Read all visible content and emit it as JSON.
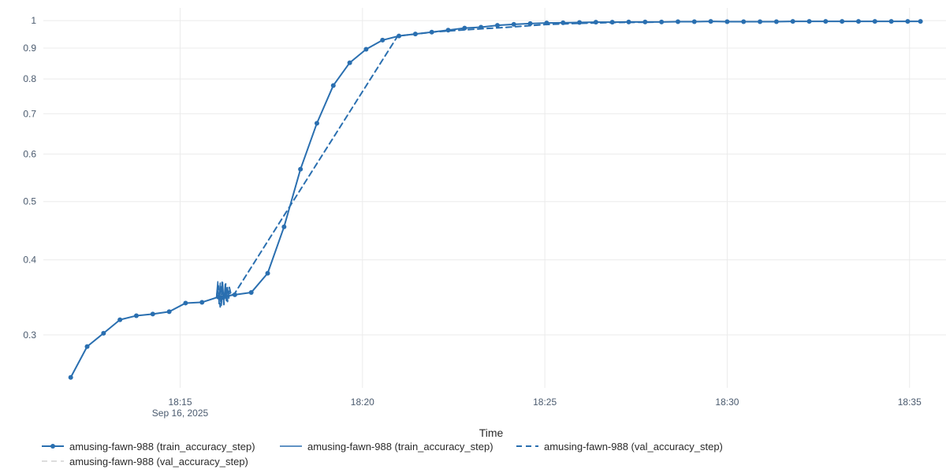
{
  "chart_data": {
    "type": "line",
    "xlabel": "Time",
    "x_scale": "time",
    "y_scale": "log",
    "grid": true,
    "legend_position": "bottom-left",
    "xlim": [
      "18:11:15",
      "18:36:00"
    ],
    "ylim": [
      0.245,
      1.05
    ],
    "x_ticks": [
      "18:15",
      "18:20",
      "18:25",
      "18:30",
      "18:35"
    ],
    "x_tick_sublabel": "Sep 16, 2025",
    "y_ticks": [
      0.3,
      0.4,
      0.5,
      0.6,
      0.7,
      0.8,
      0.9,
      1
    ],
    "colors": {
      "train_accuracy_step": "#2a6fb0",
      "train_accuracy_step_faint": "#cfe2f3",
      "val_accuracy_step": "#2a6fb0",
      "val_accuracy_step_faint": "#dddddd",
      "grid": "#ebebeb"
    },
    "series": [
      {
        "name": "amusing-fawn-988 (train_accuracy_step)",
        "style": "solid-markers",
        "points": [
          [
            "18:12:00",
            0.255
          ],
          [
            "18:12:27",
            0.287
          ],
          [
            "18:12:54",
            0.302
          ],
          [
            "18:13:21",
            0.318
          ],
          [
            "18:13:48",
            0.323
          ],
          [
            "18:14:15",
            0.325
          ],
          [
            "18:14:42",
            0.328
          ],
          [
            "18:15:09",
            0.339
          ],
          [
            "18:15:36",
            0.34
          ],
          [
            "18:16:03",
            0.347
          ],
          [
            "18:16:10",
            0.346
          ],
          [
            "18:16:15",
            0.348
          ],
          [
            "18:16:30",
            0.35
          ],
          [
            "18:16:57",
            0.353
          ],
          [
            "18:17:24",
            0.38
          ],
          [
            "18:17:51",
            0.454
          ],
          [
            "18:18:18",
            0.566
          ],
          [
            "18:18:45",
            0.675
          ],
          [
            "18:19:12",
            0.78
          ],
          [
            "18:19:39",
            0.851
          ],
          [
            "18:20:06",
            0.896
          ],
          [
            "18:20:33",
            0.928
          ],
          [
            "18:21:00",
            0.943
          ],
          [
            "18:21:27",
            0.95
          ],
          [
            "18:21:54",
            0.957
          ],
          [
            "18:22:21",
            0.964
          ],
          [
            "18:22:48",
            0.972
          ],
          [
            "18:23:15",
            0.975
          ],
          [
            "18:23:42",
            0.982
          ],
          [
            "18:24:09",
            0.986
          ],
          [
            "18:24:36",
            0.989
          ],
          [
            "18:25:03",
            0.991
          ],
          [
            "18:25:30",
            0.992
          ],
          [
            "18:25:57",
            0.993
          ],
          [
            "18:26:24",
            0.994
          ],
          [
            "18:26:51",
            0.994
          ],
          [
            "18:27:18",
            0.995
          ],
          [
            "18:27:45",
            0.995
          ],
          [
            "18:28:12",
            0.995
          ],
          [
            "18:28:39",
            0.996
          ],
          [
            "18:29:06",
            0.996
          ],
          [
            "18:29:33",
            0.997
          ],
          [
            "18:30:00",
            0.996
          ],
          [
            "18:30:27",
            0.996
          ],
          [
            "18:30:54",
            0.996
          ],
          [
            "18:31:21",
            0.996
          ],
          [
            "18:31:48",
            0.997
          ],
          [
            "18:32:15",
            0.997
          ],
          [
            "18:32:42",
            0.997
          ],
          [
            "18:33:09",
            0.997
          ],
          [
            "18:33:36",
            0.997
          ],
          [
            "18:34:03",
            0.997
          ],
          [
            "18:34:30",
            0.997
          ],
          [
            "18:34:57",
            0.997
          ],
          [
            "18:35:18",
            0.997
          ]
        ]
      },
      {
        "name": "amusing-fawn-988 (train_accuracy_step)",
        "style": "faint-solid",
        "points": [
          [
            "18:16:00",
            0.35
          ],
          [
            "18:16:02",
            0.368
          ],
          [
            "18:16:04",
            0.338
          ],
          [
            "18:16:06",
            0.366
          ],
          [
            "18:16:08",
            0.336
          ],
          [
            "18:16:10",
            0.367
          ],
          [
            "18:16:12",
            0.34
          ],
          [
            "18:16:14",
            0.364
          ],
          [
            "18:16:16",
            0.342
          ],
          [
            "18:16:18",
            0.36
          ],
          [
            "18:16:20",
            0.345
          ],
          [
            "18:16:22",
            0.352
          ]
        ]
      },
      {
        "name": "amusing-fawn-988 (val_accuracy_step)",
        "style": "dashed",
        "points": [
          [
            "18:16:00",
            0.347
          ],
          [
            "18:16:03",
            0.362
          ],
          [
            "18:16:06",
            0.334
          ],
          [
            "18:16:09",
            0.367
          ],
          [
            "18:16:12",
            0.337
          ],
          [
            "18:16:15",
            0.365
          ],
          [
            "18:16:18",
            0.341
          ],
          [
            "18:16:21",
            0.36
          ],
          [
            "18:16:24",
            0.349
          ],
          [
            "18:16:30",
            0.352
          ],
          [
            "18:20:58",
            0.943
          ],
          [
            "18:21:20",
            0.948
          ],
          [
            "18:22:00",
            0.958
          ],
          [
            "18:23:00",
            0.967
          ],
          [
            "18:24:00",
            0.975
          ],
          [
            "18:25:00",
            0.985
          ],
          [
            "18:26:00",
            0.99
          ],
          [
            "18:27:00",
            0.993
          ],
          [
            "18:28:00",
            0.994
          ]
        ]
      },
      {
        "name": "amusing-fawn-988 (val_accuracy_step)",
        "style": "faint-dashed",
        "points": [
          [
            "18:16:05",
            0.348
          ],
          [
            "18:16:25",
            0.35
          ]
        ]
      }
    ]
  }
}
